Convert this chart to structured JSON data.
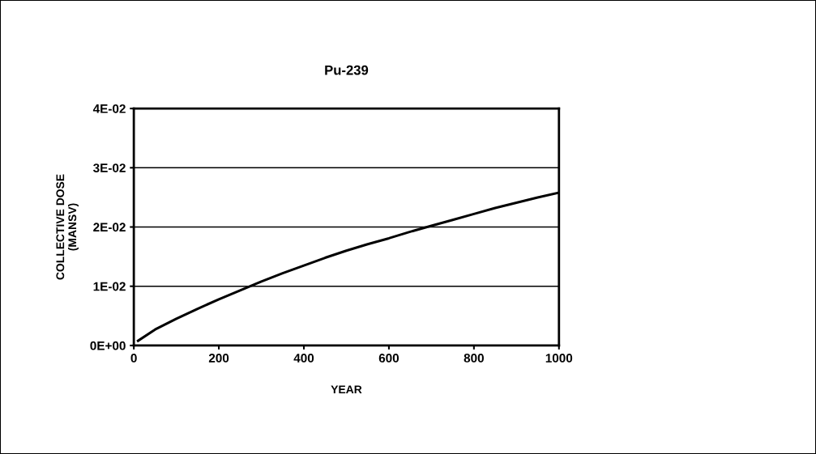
{
  "chart_data": {
    "type": "line",
    "title": "Pu-239",
    "xlabel": "YEAR",
    "ylabel": "COLLECTIVE DOSE\n(MANSV)",
    "x": [
      10,
      50,
      100,
      150,
      200,
      250,
      300,
      350,
      400,
      450,
      500,
      550,
      600,
      650,
      700,
      750,
      800,
      850,
      900,
      950,
      1000
    ],
    "series": [
      {
        "color": "#000000",
        "values": [
          0.0008,
          0.0027,
          0.0045,
          0.0062,
          0.0078,
          0.0093,
          0.0108,
          0.0122,
          0.0135,
          0.0148,
          0.016,
          0.0171,
          0.0181,
          0.0192,
          0.0202,
          0.0212,
          0.0222,
          0.0232,
          0.0241,
          0.025,
          0.0258
        ]
      }
    ],
    "xlim": [
      0,
      1000
    ],
    "xticks": [
      0,
      200,
      400,
      600,
      800,
      1000
    ],
    "ylim": [
      0,
      0.04
    ],
    "yticks": [
      {
        "value": 0,
        "label": "0E+00"
      },
      {
        "value": 0.01,
        "label": "1E-02"
      },
      {
        "value": 0.02,
        "label": "2E-02"
      },
      {
        "value": 0.03,
        "label": "3E-02"
      },
      {
        "value": 0.04,
        "label": "4E-02"
      }
    ],
    "grid": "y",
    "marker": "none",
    "line_style": "solid"
  }
}
